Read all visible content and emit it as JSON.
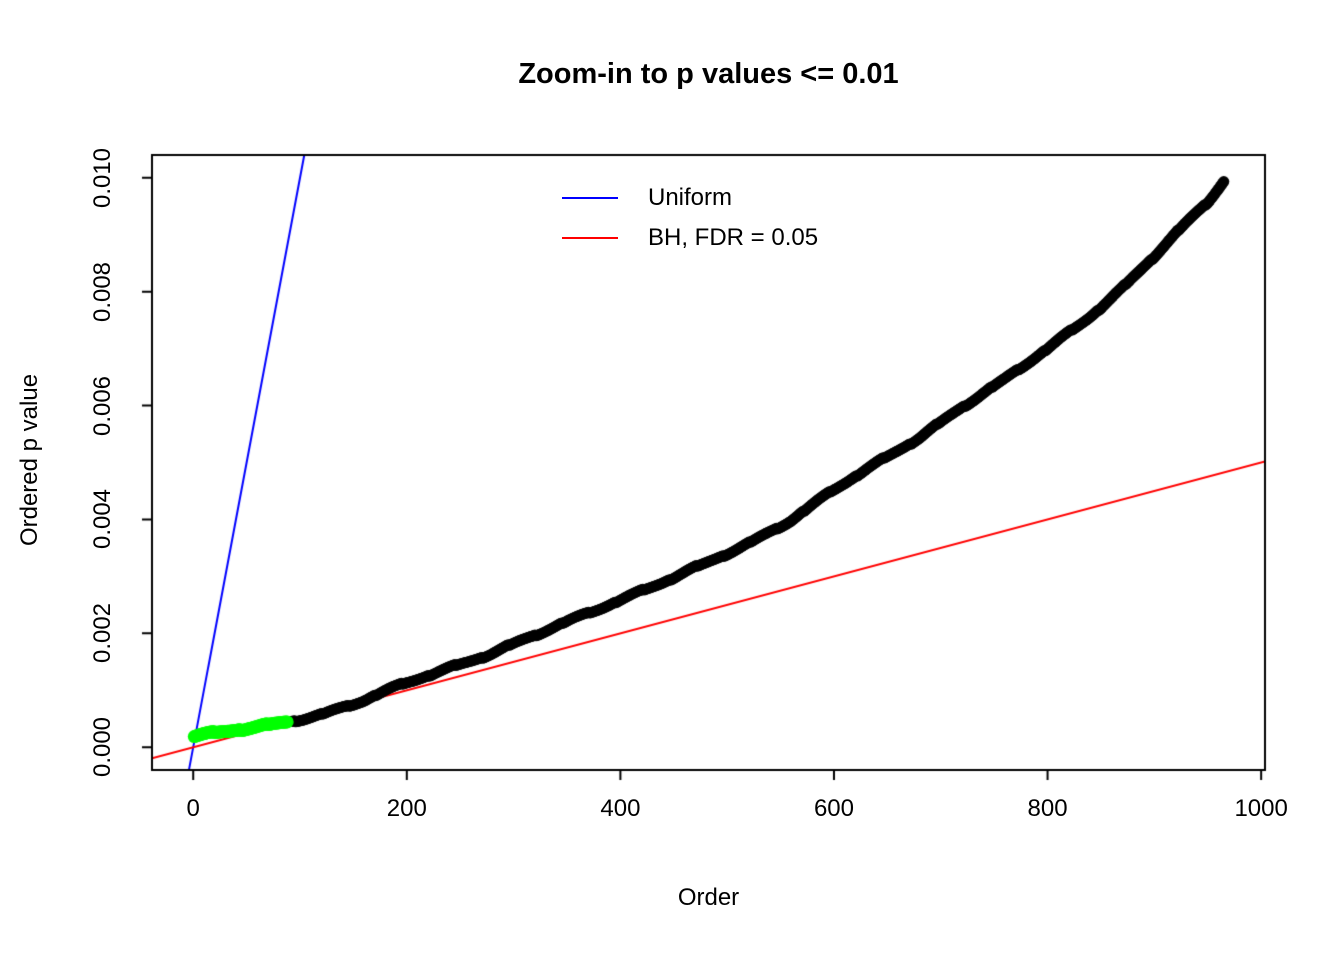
{
  "title": "Zoom-in to p values <= 0.01",
  "xlabel": "Order",
  "ylabel": "Ordered p value",
  "legend": {
    "items": [
      {
        "label": "Uniform",
        "color": "#0000ff"
      },
      {
        "label": "BH, FDR = 0.05",
        "color": "#ff0000"
      }
    ]
  },
  "chart_data": {
    "type": "scatter",
    "title": "Zoom-in to p values <= 0.01",
    "xlabel": "Order",
    "ylabel": "Ordered p value",
    "xlim": [
      -38.6,
      1003.6
    ],
    "ylim": [
      -0.0004,
      0.0104
    ],
    "x_ticks": [
      0,
      200,
      400,
      600,
      800,
      1000
    ],
    "x_tick_labels": [
      "0",
      "200",
      "400",
      "600",
      "800",
      "1000"
    ],
    "y_ticks": [
      0,
      0.002,
      0.004,
      0.006,
      0.008,
      0.01
    ],
    "y_tick_labels": [
      "0.000",
      "0.002",
      "0.004",
      "0.006",
      "0.008",
      "0.010"
    ],
    "grid": false,
    "legend_position": "top-center-inside",
    "n_points": 965,
    "n_significant_green": 88,
    "total_tests": 10000,
    "fdr": 0.05,
    "point_color": "#000000",
    "significant_color": "#00ff00",
    "lines": [
      {
        "name": "Uniform",
        "slope": 0.0001,
        "intercept": 0,
        "color": "#0000ff"
      },
      {
        "name": "BH, FDR = 0.05",
        "slope": 5e-06,
        "intercept": 0,
        "color": "#ff0000"
      }
    ],
    "curve_anchors": {
      "x": [
        1,
        30,
        60,
        90,
        120,
        160,
        200,
        240,
        280,
        320,
        360,
        400,
        440,
        480,
        520,
        560,
        600,
        640,
        680,
        720,
        760,
        800,
        840,
        870,
        900,
        930,
        950,
        965
      ],
      "y": [
        0.00019,
        0.00027,
        0.00035,
        0.00046,
        0.00058,
        0.00082,
        0.00113,
        0.0014,
        0.00166,
        0.00196,
        0.00228,
        0.0026,
        0.0029,
        0.00322,
        0.00358,
        0.004,
        0.00452,
        0.00498,
        0.00545,
        0.00598,
        0.00645,
        0.007,
        0.00758,
        0.00806,
        0.00862,
        0.0092,
        0.00958,
        0.00995
      ]
    }
  }
}
